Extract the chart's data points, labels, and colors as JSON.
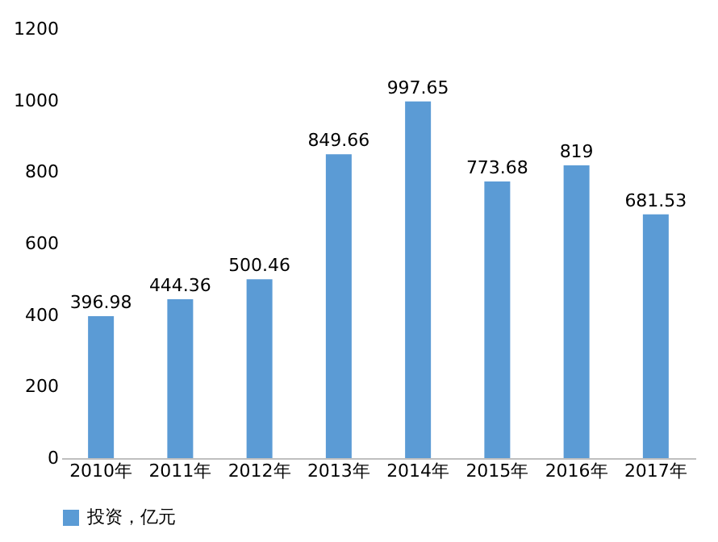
{
  "chart_data": {
    "type": "bar",
    "categories": [
      "2010年",
      "2011年",
      "2012年",
      "2013年",
      "2014年",
      "2015年",
      "2016年",
      "2017年"
    ],
    "series": [
      {
        "name": "投资，亿元",
        "color": "#5b9bd5",
        "values": [
          396.98,
          444.36,
          500.46,
          849.66,
          997.65,
          773.68,
          819,
          681.53
        ]
      }
    ],
    "ylim": [
      0,
      1200
    ],
    "yticks": [
      0,
      200,
      400,
      600,
      800,
      1000,
      1200
    ],
    "data_labels": true,
    "grid": false,
    "legend": "bottom"
  }
}
